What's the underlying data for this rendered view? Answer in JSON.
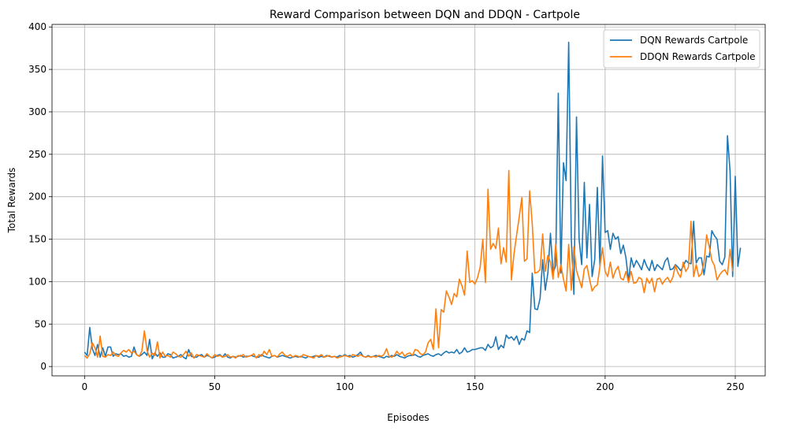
{
  "chart_data": {
    "type": "line",
    "title": "Reward Comparison between DQN and DDQN - Cartpole",
    "xlabel": "Episodes",
    "ylabel": "Total Rewards",
    "xlim": [
      -12.5,
      261.5
    ],
    "ylim": [
      -11,
      403
    ],
    "xticks": [
      0,
      50,
      100,
      150,
      200,
      250
    ],
    "yticks": [
      0,
      50,
      100,
      150,
      200,
      250,
      300,
      350,
      400
    ],
    "grid": true,
    "legend_position": "top-right",
    "series": [
      {
        "name": "DQN Rewards Cartpole",
        "color": "#1f77b4",
        "values": [
          17,
          13,
          46,
          21,
          13,
          26,
          11,
          22,
          12,
          23,
          23,
          12,
          15,
          14,
          15,
          12,
          13,
          11,
          12,
          23,
          14,
          12,
          14,
          17,
          13,
          32,
          9,
          16,
          12,
          16,
          11,
          11,
          15,
          14,
          10,
          11,
          12,
          14,
          11,
          9,
          20,
          12,
          11,
          11,
          13,
          14,
          11,
          13,
          12,
          10,
          11,
          13,
          14,
          11,
          15,
          11,
          10,
          12,
          11,
          12,
          13,
          11,
          12,
          12,
          13,
          12,
          11,
          11,
          14,
          12,
          11,
          10,
          12,
          13,
          11,
          12,
          13,
          12,
          11,
          10,
          11,
          12,
          11,
          12,
          11,
          10,
          12,
          11,
          12,
          13,
          11,
          12,
          11,
          13,
          12,
          11,
          12,
          11,
          13,
          12,
          14,
          12,
          13,
          11,
          12,
          14,
          17,
          12,
          11,
          13,
          11,
          12,
          13,
          12,
          11,
          10,
          12,
          11,
          13,
          12,
          14,
          12,
          11,
          10,
          12,
          13,
          13,
          14,
          12,
          11,
          13,
          14,
          15,
          13,
          12,
          14,
          15,
          13,
          16,
          18,
          16,
          17,
          16,
          20,
          15,
          17,
          22,
          17,
          18,
          20,
          20,
          21,
          22,
          22,
          19,
          26,
          22,
          24,
          35,
          20,
          25,
          22,
          37,
          33,
          35,
          31,
          36,
          26,
          33,
          31,
          42,
          40,
          110,
          68,
          67,
          80,
          126,
          90,
          110,
          157,
          110,
          119,
          322,
          110,
          240,
          219,
          382,
          151,
          85,
          294,
          150,
          120,
          217,
          128,
          191,
          106,
          126,
          211,
          118,
          248,
          158,
          160,
          138,
          157,
          150,
          153,
          133,
          143,
          128,
          101,
          128,
          117,
          125,
          120,
          114,
          126,
          118,
          113,
          125,
          113,
          120,
          117,
          114,
          124,
          128,
          114,
          115,
          120,
          117,
          113,
          118,
          125,
          122,
          121,
          171,
          122,
          128,
          128,
          108,
          130,
          129,
          160,
          154,
          150,
          124,
          120,
          129,
          272,
          230,
          106,
          224,
          118,
          140
        ]
      },
      {
        "name": "DDQN Rewards Cartpole",
        "color": "#ff7f0e",
        "values": [
          13,
          10,
          15,
          28,
          22,
          11,
          36,
          12,
          11,
          14,
          13,
          17,
          13,
          12,
          16,
          19,
          17,
          20,
          16,
          18,
          14,
          12,
          18,
          42,
          19,
          11,
          16,
          13,
          29,
          10,
          17,
          12,
          13,
          11,
          17,
          15,
          12,
          11,
          14,
          18,
          12,
          16,
          10,
          14,
          13,
          12,
          11,
          15,
          12,
          10,
          14,
          12,
          13,
          11,
          12,
          14,
          11,
          12,
          10,
          13,
          12,
          14,
          11,
          12,
          13,
          15,
          10,
          14,
          12,
          18,
          14,
          20,
          12,
          13,
          11,
          15,
          17,
          13,
          12,
          14,
          11,
          13,
          12,
          11,
          14,
          13,
          12,
          11,
          10,
          13,
          12,
          14,
          11,
          12,
          13,
          11,
          12,
          10,
          11,
          12,
          13,
          12,
          11,
          14,
          13,
          12,
          14,
          12,
          11,
          12,
          11,
          12,
          11,
          13,
          12,
          14,
          21,
          12,
          11,
          13,
          18,
          14,
          17,
          12,
          15,
          16,
          13,
          20,
          19,
          15,
          14,
          17,
          28,
          32,
          20,
          68,
          22,
          67,
          64,
          89,
          82,
          73,
          86,
          82,
          103,
          95,
          84,
          136,
          99,
          101,
          97,
          105,
          117,
          150,
          99,
          209,
          138,
          145,
          139,
          163,
          121,
          140,
          123,
          231,
          102,
          133,
          155,
          176,
          199,
          124,
          127,
          207,
          168,
          110,
          111,
          114,
          156,
          112,
          131,
          123,
          103,
          144,
          105,
          120,
          103,
          89,
          144,
          90,
          141,
          113,
          103,
          93,
          115,
          119,
          103,
          89,
          94,
          96,
          118,
          140,
          112,
          106,
          123,
          104,
          113,
          118,
          104,
          102,
          112,
          99,
          112,
          98,
          99,
          105,
          103,
          87,
          104,
          98,
          104,
          88,
          103,
          104,
          97,
          102,
          105,
          99,
          105,
          119,
          110,
          105,
          123,
          112,
          117,
          171,
          106,
          120,
          106,
          109,
          123,
          155,
          141,
          125,
          119,
          102,
          108,
          112,
          114,
          108,
          138,
          112
        ]
      }
    ]
  }
}
